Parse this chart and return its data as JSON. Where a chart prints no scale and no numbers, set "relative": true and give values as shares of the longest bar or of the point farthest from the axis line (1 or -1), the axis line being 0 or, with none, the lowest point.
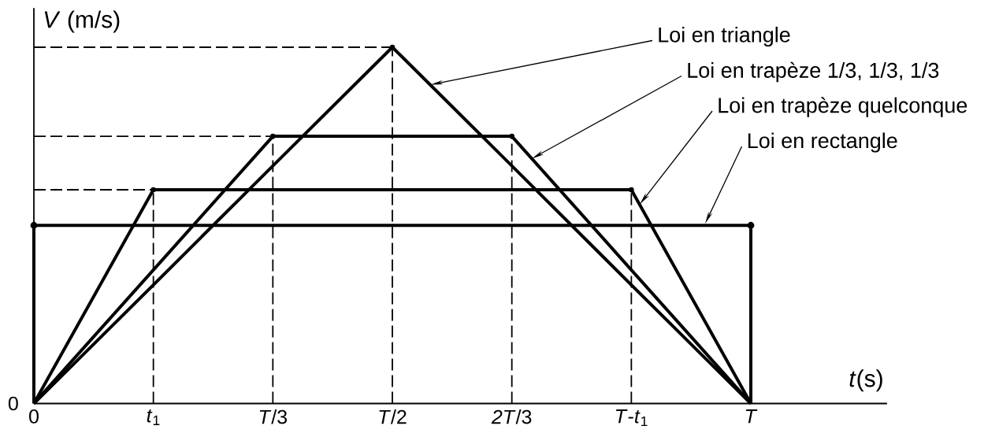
{
  "chart_data": {
    "type": "line",
    "xlabel": "*t*(s)",
    "ylabel": "*V* (m/s)",
    "relative": true,
    "categories": [
      "0",
      "*t*$_{1}$",
      "*T*/3",
      "*T*/2",
      "*2T*/3",
      "*T*-*t*$_{1}$",
      "*T*"
    ],
    "series": [
      {
        "color": "#000000",
        "line_style": "dashed",
        "values": [
          1,
          1,
          1,
          1,
          null,
          null,
          null
        ]
      },
      {
        "color": "#000000",
        "line_style": "dashed",
        "values": [
          0.75,
          0.75,
          0.75,
          null,
          null,
          null,
          null
        ]
      },
      {
        "color": "#000000",
        "line_style": "dashed",
        "values": [
          0.6,
          0.6,
          null,
          null,
          null,
          null,
          null
        ]
      },
      {
        "type": "lollipop",
        "marker": "circle",
        "color": "#000000",
        "line_style": "dashed",
        "values": [
          null,
          0.6,
          0.75,
          1,
          0.75,
          0.6,
          null
        ]
      },
      {
        "color": "#000000",
        "line_style": "solid",
        "values": [
          0,
          0.333,
          0.667,
          1,
          0.667,
          0.333,
          0
        ]
      },
      {
        "color": "#000000",
        "line_style": "solid",
        "values": [
          0,
          0.375,
          0.75,
          0.75,
          0.75,
          0.375,
          0
        ]
      },
      {
        "color": "#000000",
        "line_style": "solid",
        "values": [
          0,
          0.6,
          0.6,
          0.6,
          0.6,
          0.6,
          0
        ]
      },
      {
        "color": "#000000",
        "line_style": "solid",
        "values": [
          0.5,
          0.5,
          0.5,
          0.5,
          0.5,
          0.5,
          0.5
        ]
      },
      {
        "type": "lollipop",
        "marker": "circle",
        "color": "#000000",
        "line_style": "solid",
        "values": [
          0.5,
          null,
          null,
          null,
          null,
          null,
          0.5
        ]
      }
    ],
    "annotations": [
      "Loi en triangle",
      "Loi en trapèze 1/3, 1/3, 1/3",
      "Loi en trapèze quelconque",
      "Loi en rectangle",
      "0"
    ]
  }
}
